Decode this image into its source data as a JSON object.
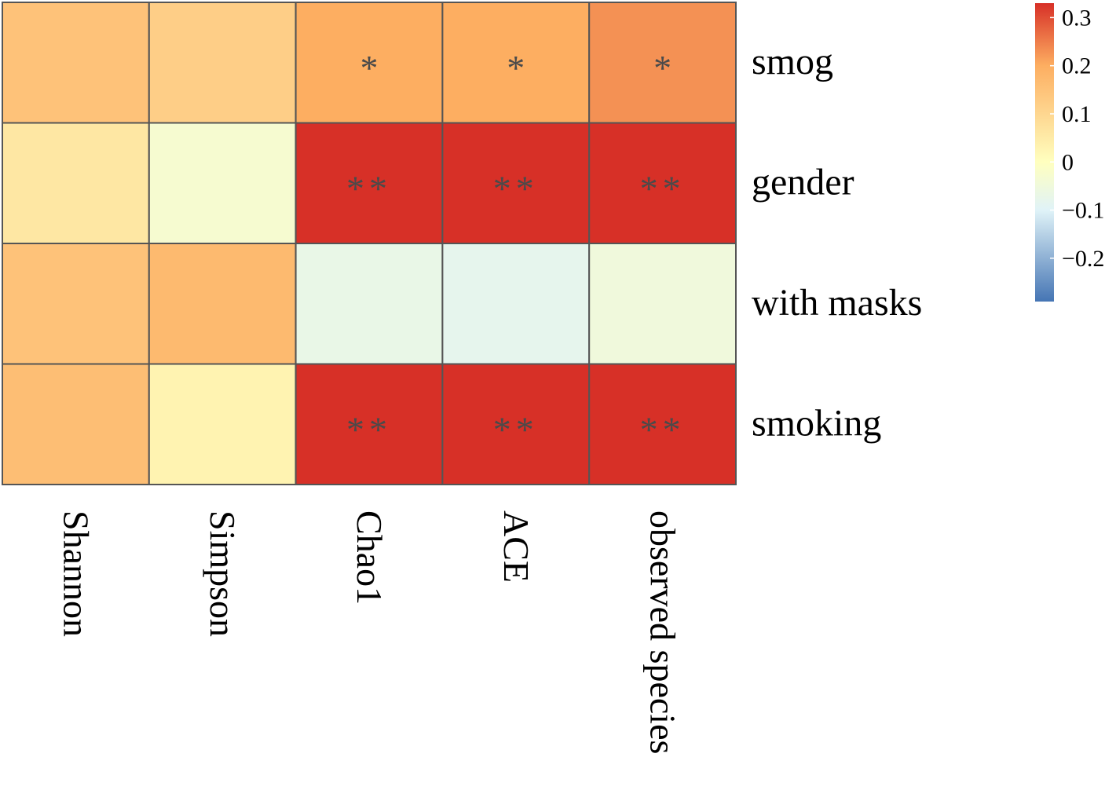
{
  "chart_data": {
    "type": "heatmap",
    "columns": [
      "Shannon",
      "Simpson",
      "Chao1",
      "ACE",
      "observed species"
    ],
    "rows": [
      "smog",
      "gender",
      "with masks",
      "smoking"
    ],
    "values": [
      [
        0.15,
        0.12,
        0.2,
        0.2,
        0.23
      ],
      [
        0.06,
        -0.03,
        0.33,
        0.34,
        0.33
      ],
      [
        0.15,
        0.17,
        -0.07,
        -0.08,
        -0.05
      ],
      [
        0.16,
        0.03,
        0.33,
        0.34,
        0.35
      ]
    ],
    "significance": [
      [
        "",
        "",
        "*",
        "*",
        "*"
      ],
      [
        "",
        "",
        "**",
        "**",
        "**"
      ],
      [
        "",
        "",
        "",
        "",
        ""
      ],
      [
        "",
        "",
        "**",
        "**",
        "**"
      ]
    ],
    "colorbar": {
      "ticks": [
        0.3,
        0.2,
        0.1,
        0,
        -0.1,
        -0.2
      ],
      "tick_labels": [
        "0.3",
        "0.2",
        "0.1",
        "0",
        "−0.1",
        "−0.2"
      ],
      "range": [
        -0.29,
        0.33
      ],
      "colors": {
        "low": "#4575b4",
        "mid_low": "#e0f3f8",
        "mid": "#ffffbf",
        "mid_high": "#fdae61",
        "high": "#d73027"
      }
    },
    "grid_line_color": "#555555"
  }
}
